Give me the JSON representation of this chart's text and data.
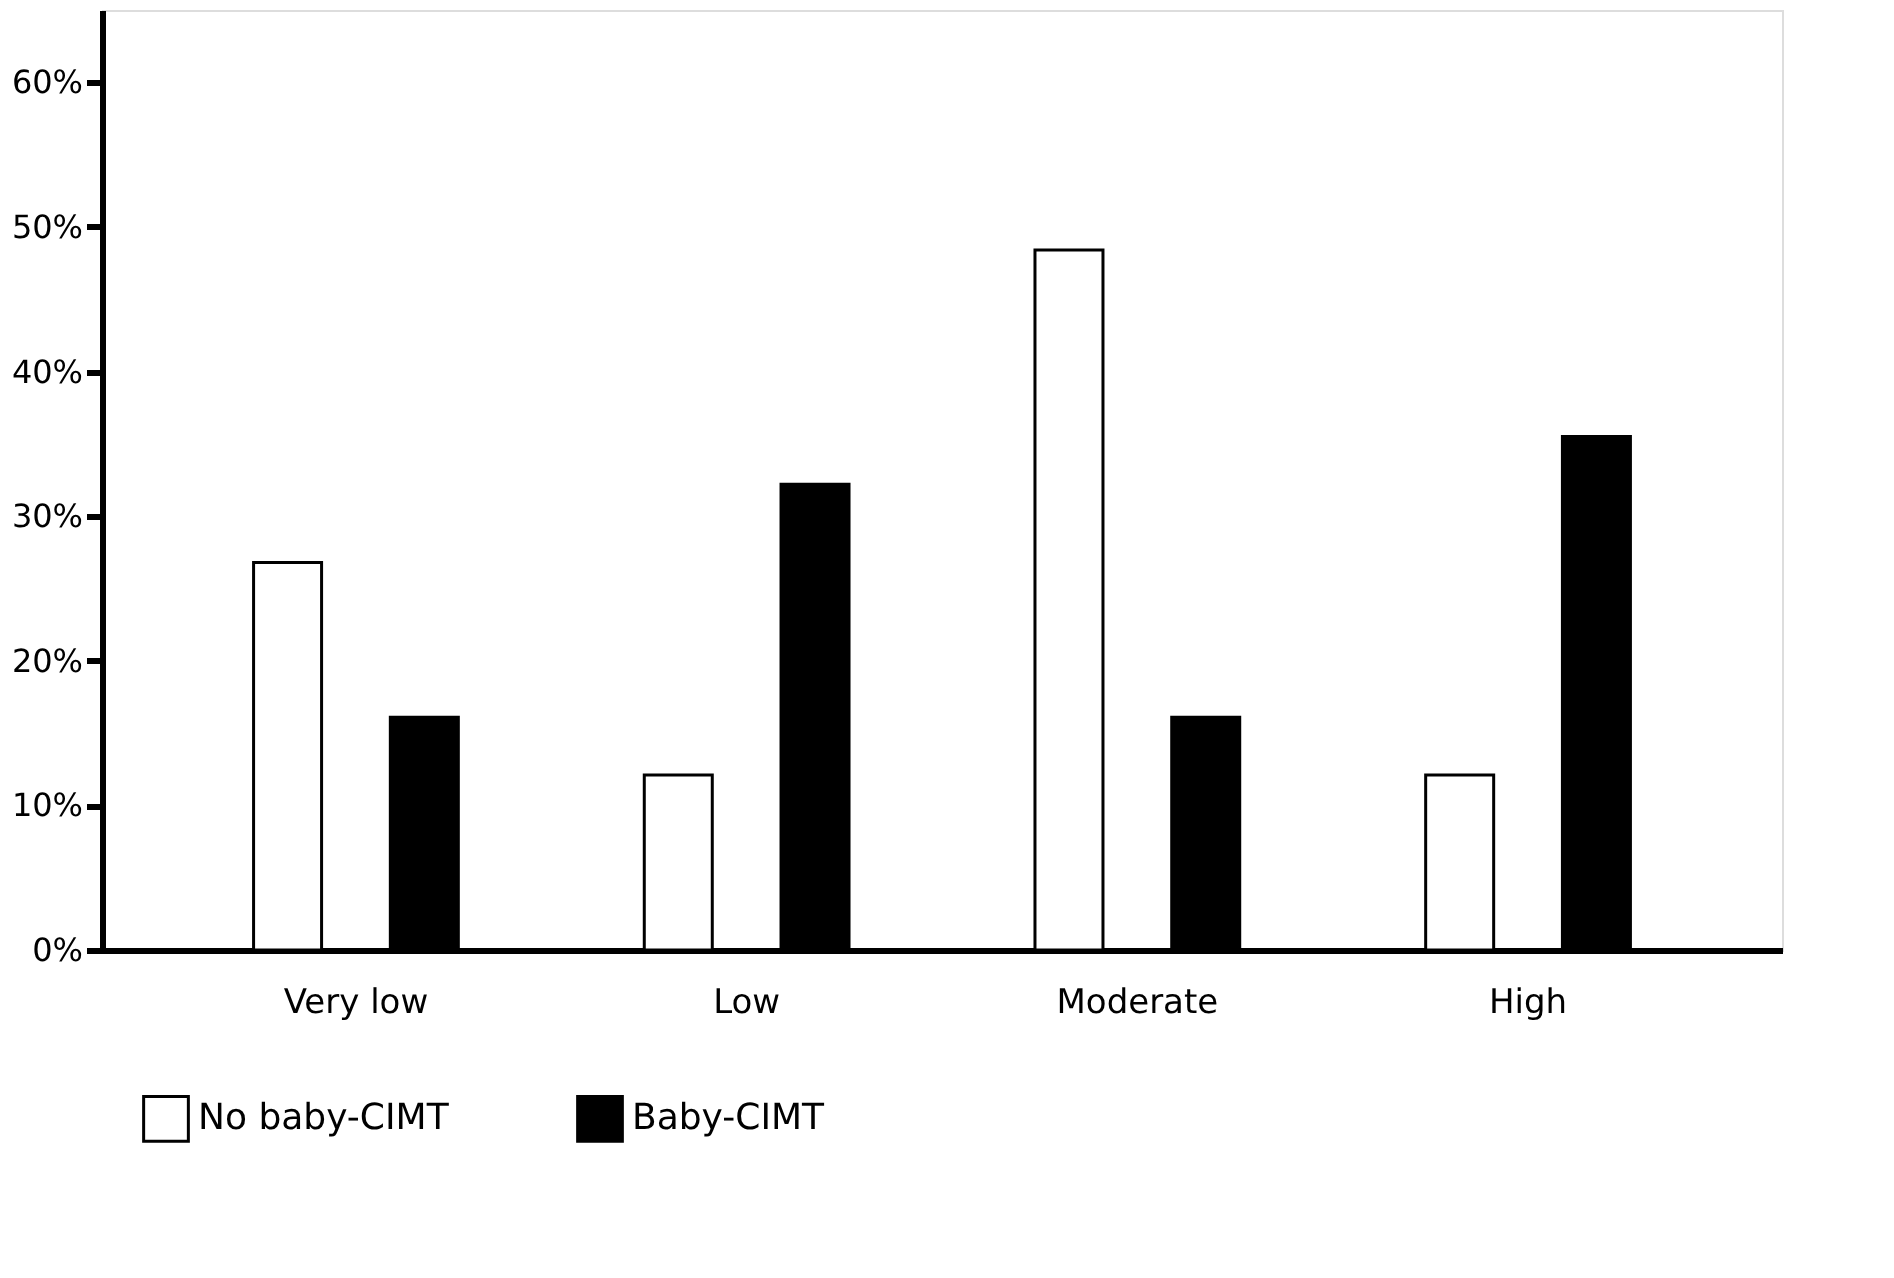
{
  "chart_data": {
    "type": "bar",
    "categories": [
      "Very low",
      "Low",
      "Moderate",
      "High"
    ],
    "series": [
      {
        "name": "No baby-CIMT",
        "color": "#ffffff",
        "values": [
          26.8,
          12.1,
          48.4,
          12.1
        ]
      },
      {
        "name": "Baby-CIMT",
        "color": "#000000",
        "values": [
          16.1,
          32.2,
          16.1,
          35.5
        ]
      }
    ],
    "ylim": [
      0,
      65
    ],
    "yticks": [
      {
        "value": 0,
        "label": "0%"
      },
      {
        "value": 10,
        "label": "10%"
      },
      {
        "value": 20,
        "label": "20%"
      },
      {
        "value": 30,
        "label": "30%"
      },
      {
        "value": 40,
        "label": "40%"
      },
      {
        "value": 50,
        "label": "50%"
      },
      {
        "value": 60,
        "label": "60%"
      }
    ],
    "grid": false,
    "legend": "bottom"
  }
}
